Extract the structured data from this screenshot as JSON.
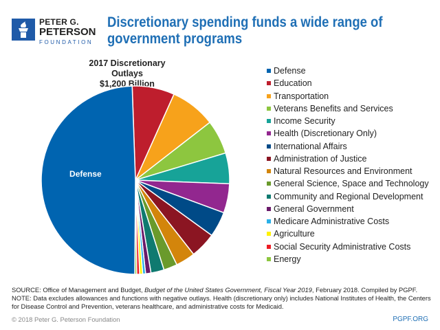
{
  "logo": {
    "line1": "PETER G.",
    "line2": "PETERSON",
    "line3": "FOUNDATION",
    "icon": "torch-icon",
    "color": "#1f5aa8"
  },
  "header": {
    "title": "Discretionary spending funds a wide range of government programs"
  },
  "chart_data": {
    "type": "pie",
    "title": "2017 Discretionary Outlays",
    "subtitle": "$1,200 Billion",
    "unit": "billions of dollars (estimated)",
    "slices": [
      {
        "name": "Defense",
        "value": 590,
        "color": "#0064b0",
        "label": "Defense"
      },
      {
        "name": "Education",
        "value": 87,
        "color": "#be1e2d"
      },
      {
        "name": "Transportation",
        "value": 93,
        "color": "#f7a21b"
      },
      {
        "name": "Veterans Benefits and Services",
        "value": 70,
        "color": "#8dc63f"
      },
      {
        "name": "Income Security",
        "value": 63,
        "color": "#17a398"
      },
      {
        "name": "Health (Discretionary Only)",
        "value": 60,
        "color": "#92278f"
      },
      {
        "name": "International Affairs",
        "value": 52,
        "color": "#004a87"
      },
      {
        "name": "Administration of Justice",
        "value": 53,
        "color": "#8b1522"
      },
      {
        "name": "Natural Resources and Environment",
        "value": 40,
        "color": "#d3850b"
      },
      {
        "name": "General Science, Space and Technology",
        "value": 28,
        "color": "#6a9a2c"
      },
      {
        "name": "Community and Regional Development",
        "value": 27,
        "color": "#0f7a70"
      },
      {
        "name": "General Government",
        "value": 11,
        "color": "#6a1a6a"
      },
      {
        "name": "Medicare Administrative Costs",
        "value": 6,
        "color": "#2bb0e8"
      },
      {
        "name": "Agriculture",
        "value": 6,
        "color": "#fff200"
      },
      {
        "name": "Social Security Administrative Costs",
        "value": 6,
        "color": "#ed1c24"
      },
      {
        "name": "Energy",
        "value": 4,
        "color": "#8dc63f"
      }
    ],
    "legend_position": "right"
  },
  "footer": {
    "source_prefix": "SOURCE: Office of Management and Budget, ",
    "source_italic": "Budget of the United States Government, Fiscal Year 2019",
    "source_suffix": ", February 2018. Compiled by PGPF.",
    "note": "NOTE: Data excludes allowances and functions with negative outlays. Health (discretionary only) includes National Institutes of Health, the Centers for Disease Control and Prevention, veterans healthcare, and administrative costs for Medicaid.",
    "copyright": "© 2018 Peter G. Peterson Foundation",
    "site": "PGPF.ORG"
  }
}
